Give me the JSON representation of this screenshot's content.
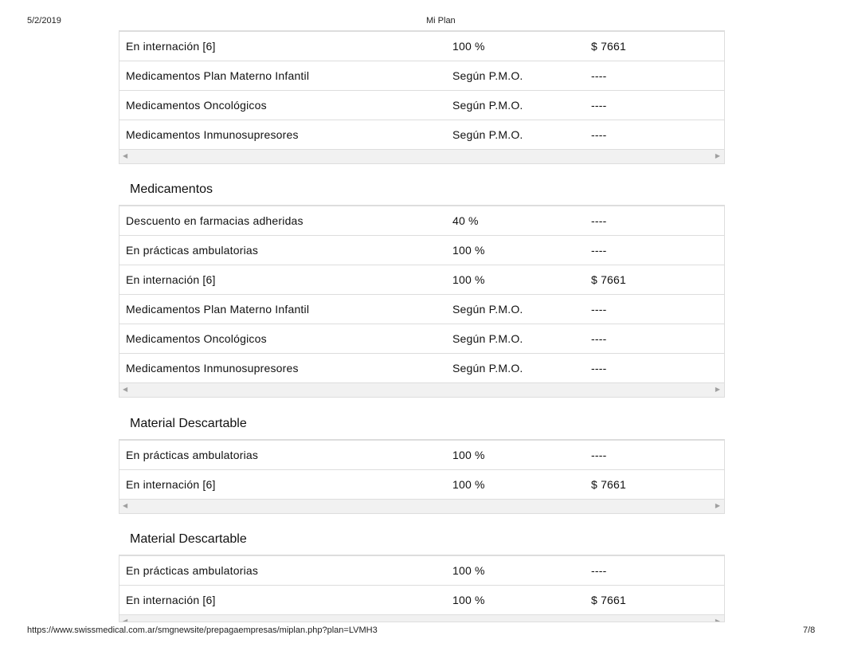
{
  "header": {
    "date": "5/2/2019",
    "title": "Mi Plan"
  },
  "footer": {
    "url": "https://www.swissmedical.com.ar/smgnewsite/prepagaempresas/miplan.php?plan=LVMH3",
    "page": "7/8"
  },
  "tables": [
    {
      "title": "",
      "rows": [
        [
          "En internación [6]",
          "100 %",
          "$ 7661"
        ],
        [
          "Medicamentos Plan Materno Infantil",
          "Según P.M.O.",
          "----"
        ],
        [
          "Medicamentos Oncológicos",
          "Según P.M.O.",
          "----"
        ],
        [
          "Medicamentos Inmunosupresores",
          "Según P.M.O.",
          "----"
        ]
      ]
    },
    {
      "title": "Medicamentos",
      "rows": [
        [
          "Descuento en farmacias adheridas",
          "40 %",
          "----"
        ],
        [
          "En prácticas ambulatorias",
          "100 %",
          "----"
        ],
        [
          "En internación [6]",
          "100 %",
          "$ 7661"
        ],
        [
          "Medicamentos Plan Materno Infantil",
          "Según P.M.O.",
          "----"
        ],
        [
          "Medicamentos Oncológicos",
          "Según P.M.O.",
          "----"
        ],
        [
          "Medicamentos Inmunosupresores",
          "Según P.M.O.",
          "----"
        ]
      ]
    },
    {
      "title": "Material Descartable",
      "rows": [
        [
          "En prácticas ambulatorias",
          "100 %",
          "----"
        ],
        [
          "En internación [6]",
          "100 %",
          "$ 7661"
        ]
      ]
    },
    {
      "title": "Material Descartable",
      "rows": [
        [
          "En prácticas ambulatorias",
          "100 %",
          "----"
        ],
        [
          "En internación [6]",
          "100 %",
          "$ 7661"
        ]
      ]
    }
  ]
}
